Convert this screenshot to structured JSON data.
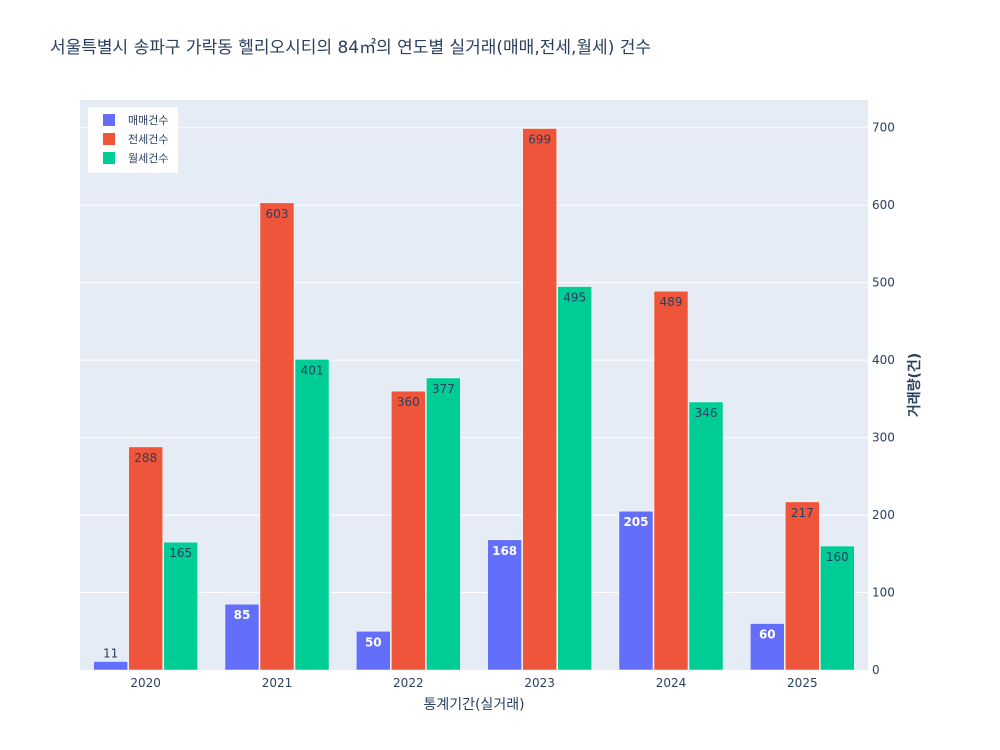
{
  "chart_data": {
    "type": "bar",
    "title": "서울특별시 송파구 가락동 헬리오시티의 84㎡의 연도별 실거래(매매,전세,월세) 건수",
    "xlabel": "통계기간(실거래)",
    "ylabel": "거래량(건)",
    "categories": [
      "2020",
      "2021",
      "2022",
      "2023",
      "2024",
      "2025"
    ],
    "series": [
      {
        "name": "매매건수",
        "color": "#636efa",
        "values": [
          11,
          85,
          50,
          168,
          205,
          60
        ]
      },
      {
        "name": "전세건수",
        "color": "#ef553b",
        "values": [
          288,
          603,
          360,
          699,
          489,
          217
        ]
      },
      {
        "name": "월세건수",
        "color": "#00cc96",
        "values": [
          165,
          401,
          377,
          495,
          346,
          160
        ]
      }
    ],
    "ylim": [
      0,
      735.79
    ],
    "yticks": [
      0,
      100,
      200,
      300,
      400,
      500,
      600,
      700
    ],
    "yaxis_side": "right",
    "grid": true,
    "legend_position": "top-left",
    "plot_background": "#e5ecf6"
  }
}
